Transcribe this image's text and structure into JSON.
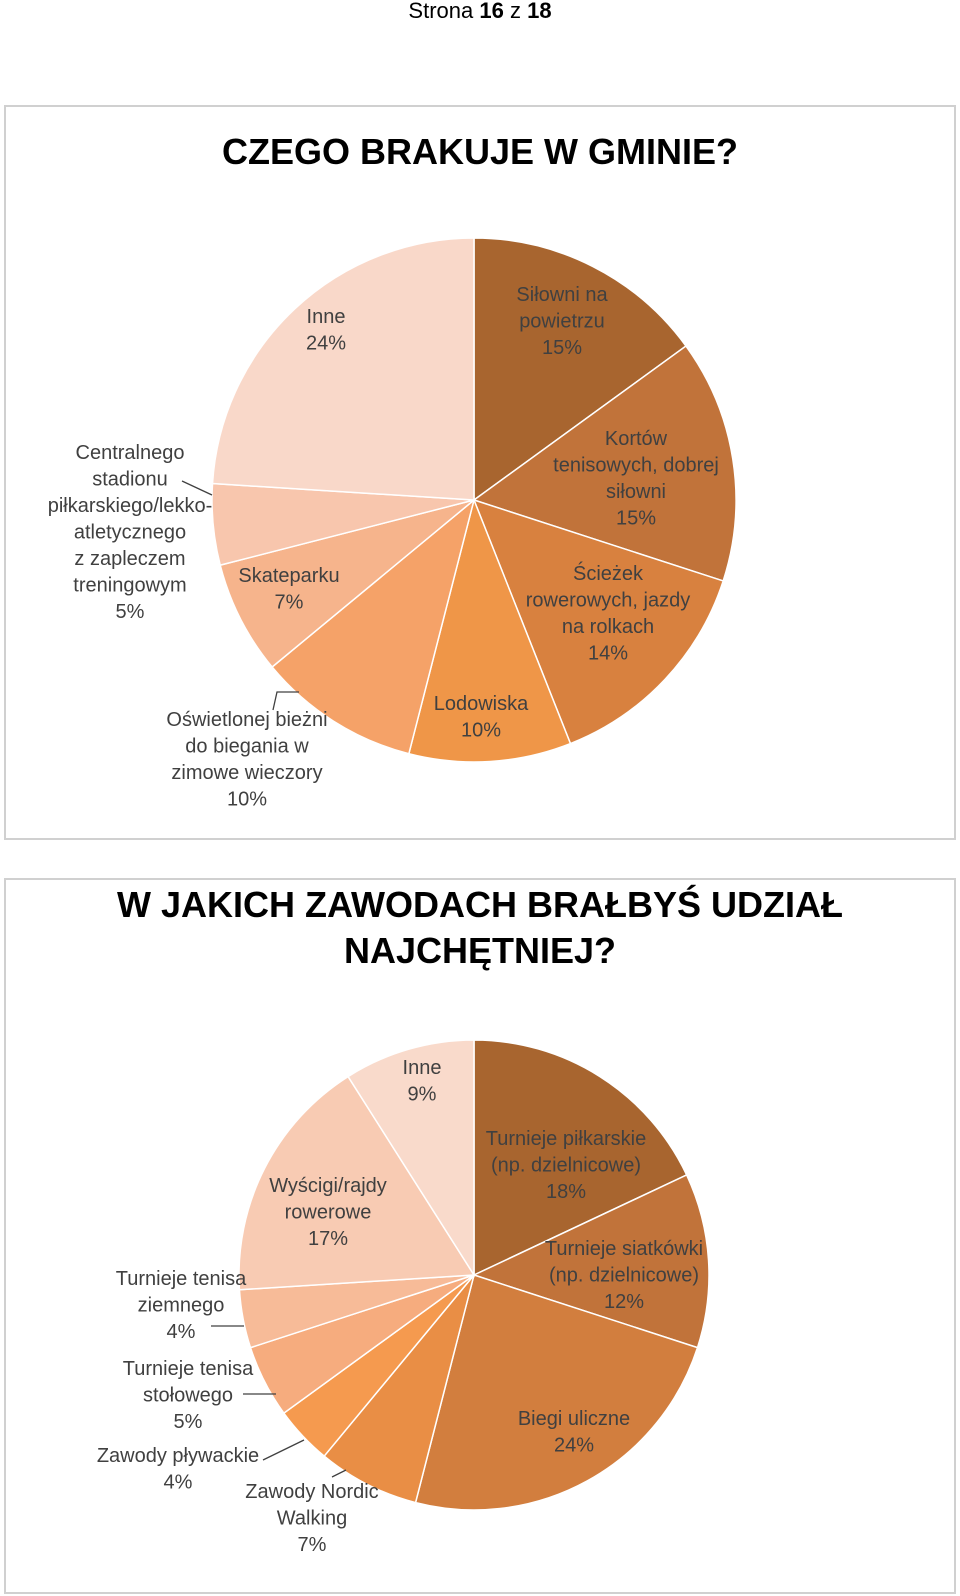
{
  "page_header": {
    "prefix": "Strona",
    "current": "16",
    "separator": "z",
    "total": "18"
  },
  "chart_data": [
    {
      "type": "pie",
      "title": "CZEGO BRAKUJE W GMINIE?",
      "legend": "none",
      "slices": [
        {
          "label": [
            "Siłowni na",
            "powietrzu"
          ],
          "percent": "15%",
          "value": 15,
          "color": "#a8652f"
        },
        {
          "label": [
            "Kortów",
            "tenisowych, dobrej",
            "siłowni"
          ],
          "percent": "15%",
          "value": 15,
          "color": "#c1733a"
        },
        {
          "label": [
            "Ścieżek",
            "rowerowych, jazdy",
            "na rolkach"
          ],
          "percent": "14%",
          "value": 14,
          "color": "#d8813f"
        },
        {
          "label": [
            "Lodowiska"
          ],
          "percent": "10%",
          "value": 10,
          "color": "#ef9648"
        },
        {
          "label": [
            "Oświetlonej bieżni",
            "do biegania w",
            "zimowe wieczory"
          ],
          "percent": "10%",
          "value": 10,
          "color": "#f5a268"
        },
        {
          "label": [
            "Skateparku"
          ],
          "percent": "7%",
          "value": 7,
          "color": "#f6b48c"
        },
        {
          "label": [
            "Centralnego",
            "stadionu",
            "piłkarskiego/lekko-",
            "atletycznego",
            "z zapleczem",
            "treningowym"
          ],
          "percent": "5%",
          "value": 5,
          "color": "#f8c6ad"
        },
        {
          "label": [
            "Inne"
          ],
          "percent": "24%",
          "value": 24,
          "color": "#f9d8c9"
        }
      ]
    },
    {
      "type": "pie",
      "title": "W JAKICH ZAWODACH BRAŁBYŚ UDZIAŁ NAJCHĘTNIEJ?",
      "title_lines": [
        "W JAKICH ZAWODACH BRAŁBYŚ UDZIAŁ",
        "NAJCHĘTNIEJ?"
      ],
      "legend": "none",
      "slices": [
        {
          "label": [
            "Turnieje piłkarskie",
            "(np. dzielnicowe)"
          ],
          "percent": "18%",
          "value": 18,
          "color": "#a8652f"
        },
        {
          "label": [
            "Turnieje siatkówki",
            "(np. dzielnicowe)"
          ],
          "percent": "12%",
          "value": 12,
          "color": "#c1733a"
        },
        {
          "label": [
            "Biegi uliczne"
          ],
          "percent": "24%",
          "value": 24,
          "color": "#d27e3e"
        },
        {
          "label": [
            "Zawody Nordic",
            "Walking"
          ],
          "percent": "7%",
          "value": 7,
          "color": "#e98e45"
        },
        {
          "label": [
            "Zawody pływackie"
          ],
          "percent": "4%",
          "value": 4,
          "color": "#f59a4f"
        },
        {
          "label": [
            "Turnieje tenisa",
            "stołowego"
          ],
          "percent": "5%",
          "value": 5,
          "color": "#f6ac7e"
        },
        {
          "label": [
            "Turnieje tenisa",
            "ziemnego"
          ],
          "percent": "4%",
          "value": 4,
          "color": "#f7bb98"
        },
        {
          "label": [
            "Wyścigi/rajdy",
            "rowerowe"
          ],
          "percent": "17%",
          "value": 17,
          "color": "#f8cbb3"
        },
        {
          "label": [
            "Inne"
          ],
          "percent": "9%",
          "value": 9,
          "color": "#f9dacb"
        }
      ]
    }
  ]
}
